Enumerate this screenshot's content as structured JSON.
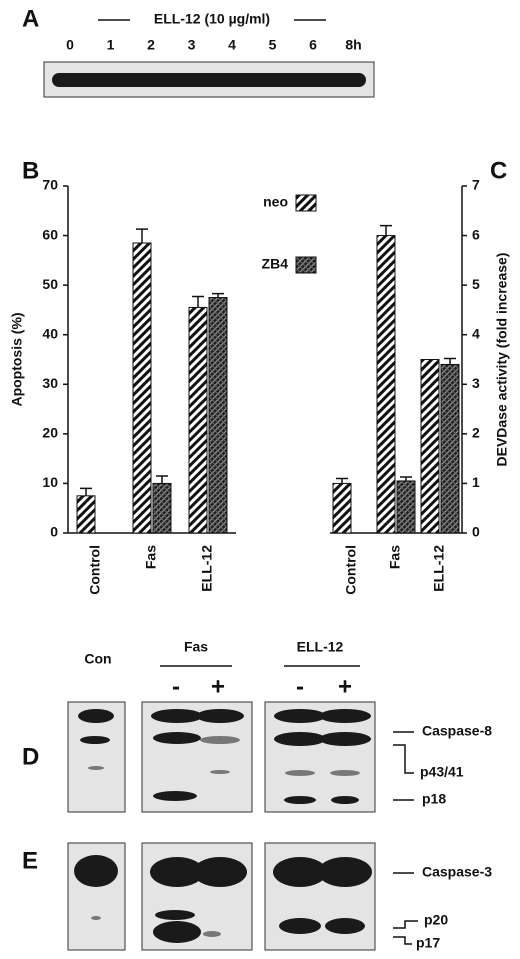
{
  "panel_a": {
    "label": "A",
    "title": "ELL-12 (10 µg/ml)",
    "lanes": [
      "0",
      "1",
      "2",
      "3",
      "4",
      "5",
      "6",
      "8h"
    ]
  },
  "chart_data": [
    {
      "type": "bar",
      "label": "B",
      "y_label": "Apoptosis (%)",
      "y_axis_side": "left",
      "legend": true,
      "categories": [
        "Control",
        "Fas",
        "ELL-12"
      ],
      "series": [
        {
          "name": "neo",
          "pattern": "hatch",
          "values": [
            7.5,
            58.5,
            45.5
          ],
          "errors": [
            1.5,
            2.8,
            2.2
          ]
        },
        {
          "name": "ZB4",
          "pattern": "crosshatch",
          "values": [
            null,
            10,
            47.5
          ],
          "errors": [
            null,
            1.5,
            0.8
          ]
        }
      ],
      "ylim": [
        0,
        70
      ],
      "yticks": [
        0,
        10,
        20,
        30,
        40,
        50,
        60,
        70
      ]
    },
    {
      "type": "bar",
      "label": "C",
      "y_label": "DEVDase activity (fold increase)",
      "y_axis_side": "right",
      "legend": false,
      "categories": [
        "Control",
        "Fas",
        "ELL-12"
      ],
      "series": [
        {
          "pattern": "hatch",
          "values": [
            1.0,
            6.0,
            3.5
          ],
          "errors": [
            0.1,
            0.2,
            null
          ]
        },
        {
          "pattern": "crosshatch",
          "values": [
            null,
            1.05,
            3.4
          ],
          "errors": [
            null,
            0.08,
            0.12
          ]
        }
      ],
      "ylim": [
        0,
        7
      ],
      "yticks": [
        0,
        1,
        2,
        3,
        4,
        5,
        6,
        7
      ]
    }
  ],
  "blots": {
    "con": "Con",
    "fas": "Fas",
    "ell": "ELL-12",
    "signs": [
      "-",
      "+",
      "-",
      "+"
    ],
    "d": {
      "label": "D",
      "bands": [
        "Caspase-8",
        "p43/41",
        "p18"
      ]
    },
    "e": {
      "label": "E",
      "bands": [
        "Caspase-3",
        "p20",
        "p17"
      ]
    }
  }
}
